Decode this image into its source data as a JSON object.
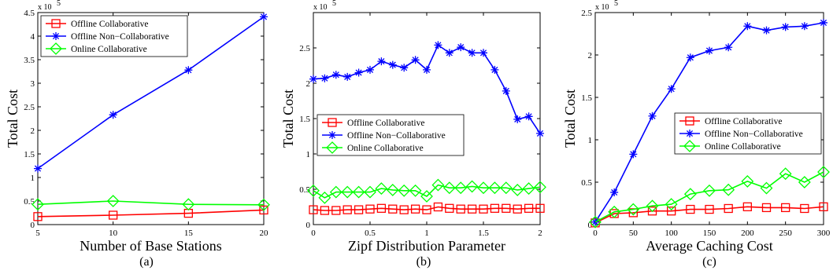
{
  "series_styles": [
    {
      "color": "#ff0000",
      "marker": "square"
    },
    {
      "color": "#0000ff",
      "marker": "asterisk"
    },
    {
      "color": "#00ff00",
      "marker": "diamond"
    }
  ],
  "chart_data": [
    {
      "type": "line",
      "caption": "(a)",
      "xlabel": "Number of Base Stations",
      "ylabel": "Total Cost",
      "y_scale_label": "x 10",
      "y_scale_exp": "5",
      "xlim": [
        5,
        20
      ],
      "ylim": [
        0,
        4.5
      ],
      "xticks": [
        5,
        10,
        15,
        20
      ],
      "yticks": [
        0,
        0.5,
        1,
        1.5,
        2,
        2.5,
        3,
        3.5,
        4,
        4.5
      ],
      "ytick_labels": [
        "0",
        "0.5",
        "1",
        "1.5",
        "2",
        "2.5",
        "3",
        "3.5",
        "4",
        "4.5"
      ],
      "x": [
        5,
        10,
        15,
        20
      ],
      "legend_position": "top-left",
      "series": [
        {
          "name": "Offline Collaborative",
          "values": [
            0.17,
            0.2,
            0.24,
            0.31
          ]
        },
        {
          "name": "Offline Non−Collaborative",
          "values": [
            1.19,
            2.33,
            3.28,
            4.41
          ]
        },
        {
          "name": "Online Collaborative",
          "values": [
            0.43,
            0.5,
            0.43,
            0.42
          ]
        }
      ]
    },
    {
      "type": "line",
      "caption": "(b)",
      "xlabel": "Zipf Distribution Parameter",
      "ylabel": "Total Cost",
      "y_scale_label": "x 10",
      "y_scale_exp": "5",
      "xlim": [
        0,
        2
      ],
      "ylim": [
        0,
        3
      ],
      "xticks": [
        0,
        0.5,
        1,
        1.5,
        2
      ],
      "yticks": [
        0,
        0.5,
        1,
        1.5,
        2,
        2.5
      ],
      "ytick_labels": [
        "0",
        "0.5",
        "1",
        "1.5",
        "2",
        "2.5"
      ],
      "x": [
        0,
        0.1,
        0.2,
        0.3,
        0.4,
        0.5,
        0.6,
        0.7,
        0.8,
        0.9,
        1.0,
        1.1,
        1.2,
        1.3,
        1.4,
        1.5,
        1.6,
        1.7,
        1.8,
        1.9,
        2.0
      ],
      "legend_position": "center-left",
      "series": [
        {
          "name": "Offline Collaborative",
          "values": [
            0.21,
            0.2,
            0.2,
            0.21,
            0.21,
            0.22,
            0.23,
            0.22,
            0.21,
            0.22,
            0.21,
            0.25,
            0.23,
            0.22,
            0.22,
            0.22,
            0.23,
            0.23,
            0.22,
            0.23,
            0.23
          ]
        },
        {
          "name": "Offline Non−Collaborative",
          "values": [
            2.06,
            2.07,
            2.12,
            2.09,
            2.15,
            2.19,
            2.31,
            2.26,
            2.22,
            2.33,
            2.19,
            2.54,
            2.43,
            2.51,
            2.43,
            2.43,
            2.19,
            1.89,
            1.49,
            1.53,
            1.29
          ]
        },
        {
          "name": "Online Collaborative",
          "values": [
            0.48,
            0.38,
            0.46,
            0.46,
            0.46,
            0.46,
            0.51,
            0.49,
            0.48,
            0.48,
            0.4,
            0.56,
            0.52,
            0.52,
            0.54,
            0.52,
            0.52,
            0.52,
            0.49,
            0.51,
            0.53
          ]
        }
      ]
    },
    {
      "type": "line",
      "caption": "(c)",
      "xlabel": "Average Caching Cost",
      "ylabel": "Total Cost",
      "y_scale_label": "x 10",
      "y_scale_exp": "5",
      "xlim": [
        0,
        300
      ],
      "ylim": [
        0,
        2.5
      ],
      "xticks": [
        0,
        50,
        100,
        150,
        200,
        250,
        300
      ],
      "yticks": [
        0,
        0.5,
        1,
        1.5,
        2,
        2.5
      ],
      "ytick_labels": [
        "0",
        "0.5",
        "1",
        "1.5",
        "2",
        "2.5"
      ],
      "x": [
        0,
        25,
        50,
        75,
        100,
        125,
        150,
        175,
        200,
        225,
        250,
        275,
        300
      ],
      "legend_position": "center-right",
      "series": [
        {
          "name": "Offline Collaborative",
          "values": [
            0.02,
            0.13,
            0.14,
            0.16,
            0.16,
            0.18,
            0.18,
            0.19,
            0.21,
            0.2,
            0.2,
            0.19,
            0.21
          ]
        },
        {
          "name": "Offline Non−Collaborative",
          "values": [
            0.03,
            0.38,
            0.83,
            1.28,
            1.6,
            1.97,
            2.05,
            2.09,
            2.34,
            2.29,
            2.33,
            2.34,
            2.38
          ]
        },
        {
          "name": "Online Collaborative",
          "values": [
            0.03,
            0.15,
            0.18,
            0.22,
            0.24,
            0.36,
            0.4,
            0.41,
            0.51,
            0.43,
            0.6,
            0.5,
            0.62
          ]
        }
      ]
    }
  ]
}
